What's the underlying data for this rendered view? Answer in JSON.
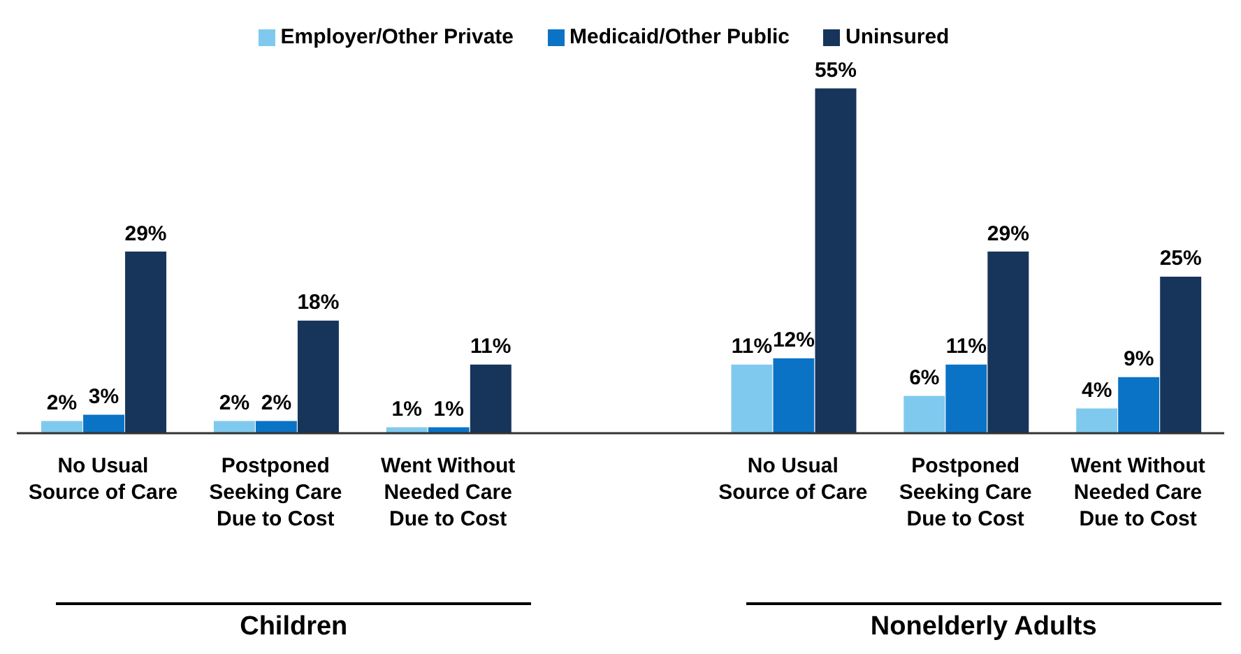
{
  "chart_data": {
    "type": "bar",
    "categories": [
      "No Usual Source of Care",
      "Postponed Seeking Care Due to Cost",
      "Went Without Needed Care Due to Cost",
      null,
      "No Usual Source of Care",
      "Postponed Seeking Care Due to Cost",
      "Went Without Needed Care Due to Cost"
    ],
    "series": [
      {
        "name": "Employer/Other Private",
        "color": "#7fc9ee",
        "values": [
          2,
          2,
          1,
          null,
          11,
          6,
          4
        ],
        "value_labels": [
          "2%",
          "2%",
          "1%",
          null,
          "11%",
          "6%",
          "4%"
        ]
      },
      {
        "name": "Medicaid/Other Public",
        "color": "#0b73c5",
        "values": [
          3,
          2,
          1,
          null,
          12,
          11,
          9
        ],
        "value_labels": [
          "3%",
          "2%",
          "1%",
          null,
          "12%",
          "11%",
          "9%"
        ]
      },
      {
        "name": "Uninsured",
        "color": "#17355a",
        "values": [
          29,
          18,
          11,
          null,
          55,
          29,
          25
        ],
        "value_labels": [
          "29%",
          "18%",
          "11%",
          null,
          "55%",
          "29%",
          "25%"
        ]
      }
    ],
    "annotations": [
      "Children",
      "Nonelderly Adults"
    ],
    "legend": "top",
    "grid": false
  }
}
